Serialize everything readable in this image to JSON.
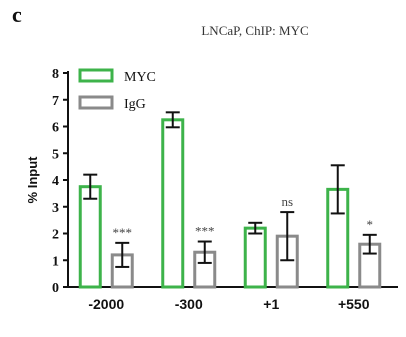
{
  "panel_label": "c",
  "chart_data": {
    "type": "bar",
    "title": "LNCaP, ChIP: MYC",
    "ylabel": "% Input",
    "xlabel": "",
    "categories": [
      "-2000",
      "-300",
      "+1",
      "+550"
    ],
    "ylim": [
      0,
      8
    ],
    "yticks": [
      "0",
      "1",
      "2",
      "3",
      "4",
      "5",
      "6",
      "7",
      "8"
    ],
    "grid": false,
    "legend_position": "top-left",
    "series": [
      {
        "name": "MYC",
        "color": "#3db34a",
        "values": [
          3.75,
          6.25,
          2.2,
          3.65
        ],
        "errors": [
          0.45,
          0.28,
          0.2,
          0.9
        ]
      },
      {
        "name": "IgG",
        "color": "#8a8a8a",
        "values": [
          1.2,
          1.3,
          1.9,
          1.6
        ],
        "errors": [
          0.45,
          0.4,
          0.9,
          0.35
        ]
      }
    ],
    "annotations": [
      "***",
      "***",
      "ns",
      "*"
    ]
  }
}
